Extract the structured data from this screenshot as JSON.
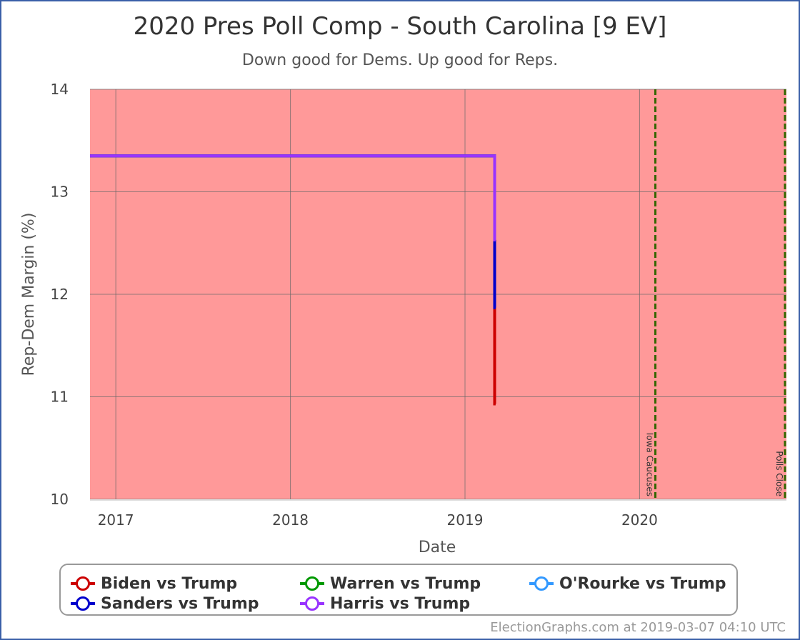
{
  "chart_data": {
    "type": "line",
    "title": "2020 Pres Poll Comp - South Carolina [9 EV]",
    "subtitle": "Down good for Dems. Up good for Reps.",
    "xlabel": "Date",
    "ylabel": "Rep-Dem Margin (%)",
    "xlim": [
      "2016-11-08",
      "2020-11-03"
    ],
    "ylim": [
      10,
      14
    ],
    "xticks": [
      {
        "date": "2017-01-01",
        "label": "2017"
      },
      {
        "date": "2018-01-01",
        "label": "2018"
      },
      {
        "date": "2019-01-01",
        "label": "2019"
      },
      {
        "date": "2020-01-01",
        "label": "2020"
      }
    ],
    "yticks": [
      10,
      11,
      12,
      13,
      14
    ],
    "grid": true,
    "background_color": "#ff9999",
    "series": [
      {
        "name": "Biden vs Trump",
        "color": "#cc0000",
        "points": [
          [
            "2016-11-08",
            13.35
          ],
          [
            "2019-03-04",
            13.35
          ],
          [
            "2019-03-04",
            10.93
          ],
          [
            "2019-03-06",
            10.93
          ]
        ]
      },
      {
        "name": "Warren vs Trump",
        "color": "#009900",
        "points": [
          [
            "2016-11-08",
            13.35
          ],
          [
            "2019-03-04",
            13.35
          ],
          [
            "2019-03-04",
            12.16
          ],
          [
            "2019-03-06",
            12.16
          ]
        ]
      },
      {
        "name": "O'Rourke vs Trump",
        "color": "#3399ff",
        "points": [
          [
            "2016-11-08",
            13.35
          ],
          [
            "2019-03-04",
            13.35
          ],
          [
            "2019-03-04",
            12.6
          ],
          [
            "2019-03-06",
            12.6
          ]
        ]
      },
      {
        "name": "Sanders vs Trump",
        "color": "#0000cc",
        "points": [
          [
            "2016-11-08",
            13.35
          ],
          [
            "2019-03-04",
            13.35
          ],
          [
            "2019-03-04",
            11.87
          ],
          [
            "2019-03-06",
            11.87
          ]
        ]
      },
      {
        "name": "Harris vs Trump",
        "color": "#9933ff",
        "points": [
          [
            "2016-11-08",
            13.35
          ],
          [
            "2019-03-04",
            13.35
          ],
          [
            "2019-03-04",
            12.53
          ],
          [
            "2019-03-06",
            12.53
          ]
        ]
      }
    ],
    "events": [
      {
        "date": "2020-02-03",
        "label": "Iowa Caucuses",
        "color": "#336600"
      },
      {
        "date": "2020-11-03",
        "label": "Polls Close",
        "color": "#336600"
      }
    ],
    "legend_position": "bottom"
  },
  "footer": {
    "text": "ElectionGraphs.com at 2019-03-07 04:10 UTC"
  }
}
